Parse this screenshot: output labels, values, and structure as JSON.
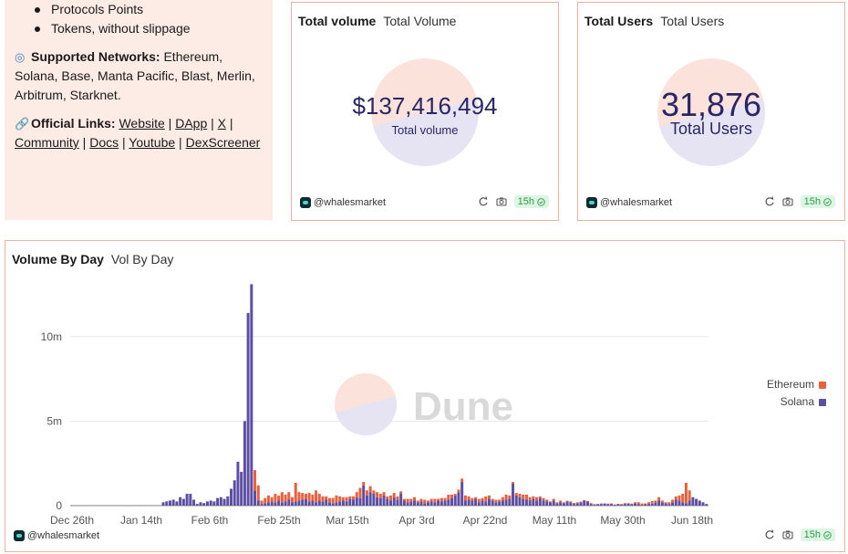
{
  "info": {
    "bullets": [
      "Protocols Points",
      "Tokens, without slippage"
    ],
    "networks_label": "Supported Networks:",
    "networks_text": " Ethereum, Solana, Base, Manta Pacific, Blast, Merlin, Arbitrum, Starknet.",
    "links_label": "Official Links:",
    "links": [
      "Website",
      "DApp",
      "X",
      "Community",
      "Docs",
      "Youtube",
      "DexScreener"
    ]
  },
  "cards": {
    "volume": {
      "title": "Total volume",
      "subtitle": "Total Volume",
      "value": "$137,416,494",
      "label": "Total volume"
    },
    "users": {
      "title": "Total Users",
      "subtitle": "Total Users",
      "value": "31,876",
      "label": "Total Users"
    },
    "author": "@whalesmarket",
    "refresh": "15h"
  },
  "chart_header": {
    "title": "Volume By Day",
    "subtitle": "Vol By Day"
  },
  "watermark": "Dune",
  "colors": {
    "ethereum": "#e8603c",
    "solana": "#5b4ea3",
    "border": "#e7b3a3",
    "panel_bg": "#fdebe6",
    "counter_text": "#2b2566"
  },
  "icons": [
    "refresh-icon",
    "camera-icon",
    "check-circle-icon"
  ],
  "chart_data": {
    "type": "bar",
    "stacked": true,
    "x_ticks": [
      "Dec 26th",
      "Jan 14th",
      "Feb 6th",
      "Feb 25th",
      "Mar 15th",
      "Apr 3rd",
      "Apr 22nd",
      "May 11th",
      "May 30th",
      "Jun 18th"
    ],
    "y_ticks": [
      "0",
      "5m",
      "10m"
    ],
    "ylim": [
      0,
      13500000
    ],
    "legend": [
      "Ethereum",
      "Solana"
    ],
    "legend_position": "right",
    "grid": true,
    "series": [
      {
        "name": "Solana",
        "values": [
          0.01,
          0.01,
          0.01,
          0.01,
          0.01,
          0.01,
          0.01,
          0.01,
          0.01,
          0.01,
          0.01,
          0.01,
          0.01,
          0.01,
          0.01,
          0.01,
          0.01,
          0.01,
          0.01,
          0.01,
          0.01,
          0.01,
          0.01,
          0.01,
          0.01,
          0.01,
          0.01,
          0.2,
          0.25,
          0.3,
          0.35,
          0.25,
          0.5,
          0.4,
          0.7,
          0.7,
          0.35,
          0.1,
          0.2,
          0.15,
          0.25,
          0.3,
          0.25,
          0.45,
          0.5,
          0.4,
          0.55,
          1.0,
          1.5,
          2.6,
          2.0,
          5.0,
          11.4,
          13.1,
          0.9,
          0.3,
          0.1,
          0.15,
          0.2,
          0.25,
          0.2,
          0.3,
          0.2,
          0.25,
          0.35,
          0.2,
          0.25,
          0.3,
          0.35,
          0.4,
          0.25,
          0.3,
          0.2,
          0.3,
          0.25,
          0.35,
          0.2,
          0.15,
          0.2,
          0.25,
          0.3,
          0.25,
          0.4,
          0.35,
          0.5,
          0.45,
          1.2,
          0.6,
          0.8,
          0.7,
          0.5,
          0.45,
          0.6,
          0.4,
          0.3,
          0.5,
          0.35,
          0.7,
          0.3,
          0.2,
          0.25,
          0.3,
          0.2,
          0.25,
          0.15,
          0.2,
          0.25,
          0.2,
          0.3,
          0.25,
          0.3,
          0.35,
          0.45,
          0.6,
          0.8,
          1.4,
          0.3,
          0.35,
          0.3,
          0.4,
          0.2,
          0.3,
          0.25,
          0.4,
          0.3,
          0.2,
          0.25,
          0.3,
          0.35,
          0.4,
          1.3,
          0.6,
          0.5,
          0.4,
          0.35,
          0.3,
          0.4,
          0.3,
          0.45,
          0.3,
          0.25,
          0.2,
          0.3,
          0.15,
          0.2,
          0.15,
          0.25,
          0.2,
          0.1,
          0.15,
          0.2,
          0.3,
          0.25,
          0.1,
          0.05,
          0.08,
          0.1,
          0.12,
          0.08,
          0.1,
          0.05,
          0.08,
          0.06,
          0.1,
          0.12,
          0.08,
          0.15,
          0.1,
          0.05,
          0.08,
          0.1,
          0.12,
          0.2,
          0.3,
          0.2,
          0.15,
          0.1,
          0.2,
          0.35,
          0.3,
          0.2,
          0.15,
          0.3,
          0.5,
          0.4,
          0.3,
          0.2,
          0.1
        ]
      },
      {
        "name": "Ethereum",
        "values": [
          0,
          0,
          0,
          0,
          0,
          0,
          0,
          0,
          0,
          0,
          0,
          0,
          0,
          0,
          0,
          0,
          0,
          0,
          0,
          0,
          0,
          0,
          0,
          0,
          0,
          0,
          0,
          0,
          0,
          0,
          0,
          0,
          0,
          0,
          0,
          0,
          0,
          0,
          0,
          0,
          0,
          0,
          0,
          0,
          0,
          0,
          0,
          0,
          0,
          0,
          0,
          0,
          0,
          0,
          1.2,
          0.9,
          0.2,
          0.3,
          0.4,
          0.25,
          0.5,
          0.3,
          0.6,
          0.4,
          0.45,
          0.3,
          1.1,
          0.5,
          0.4,
          0.3,
          0.5,
          0.35,
          0.7,
          0.4,
          0.3,
          0.2,
          0.25,
          0.3,
          0.4,
          0.3,
          0.2,
          0.25,
          0.15,
          0.2,
          0.3,
          0.6,
          0.2,
          0.3,
          0.35,
          0.2,
          0.3,
          0.25,
          0.2,
          0.15,
          0.3,
          0.25,
          0.2,
          0.15,
          0.1,
          0.2,
          0.15,
          0.2,
          0.1,
          0.15,
          0.2,
          0.1,
          0.15,
          0.2,
          0.1,
          0.2,
          0.15,
          0.3,
          0.2,
          0.1,
          0.15,
          0.2,
          0.3,
          0.2,
          0.15,
          0.1,
          0.2,
          0.15,
          0.3,
          0.2,
          0.1,
          0.15,
          0.1,
          0.2,
          0.3,
          0.2,
          0.1,
          0.15,
          0.2,
          0.25,
          0.3,
          0.2,
          0.15,
          0.2,
          0.1,
          0.15,
          0.1,
          0.05,
          0.1,
          0.05,
          0.1,
          0.05,
          0.04,
          0.05,
          0.06,
          0.05,
          0.04,
          0.02,
          0.03,
          0.05,
          0.04,
          0.02,
          0.03,
          0.02,
          0.04,
          0.03,
          0.02,
          0.03,
          0.04,
          0.05,
          0.03,
          0.04,
          0.05,
          0.1,
          0.08,
          0.05,
          0.1,
          0.15,
          0.1,
          0.2,
          0.1,
          0.05,
          0.1,
          0.15,
          0.2,
          0.3,
          0.5,
          1.2,
          0.6
        ]
      }
    ],
    "value_unit": "millions"
  }
}
